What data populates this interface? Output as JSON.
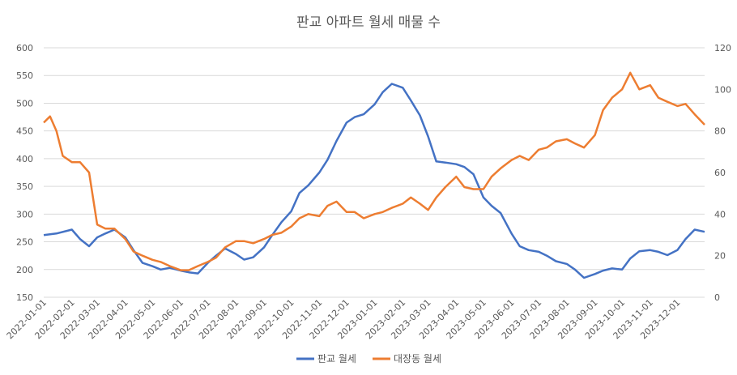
{
  "chart_data": {
    "type": "line",
    "title": "판교 아파트 월세 매물 수",
    "x_tick_labels": [
      "2022-01-01",
      "2022-02-01",
      "2022-03-01",
      "2022-04-01",
      "2022-05-01",
      "2022-06-01",
      "2022-07-01",
      "2022-08-01",
      "2022-09-01",
      "2022-10-01",
      "2022-11-01",
      "2022-12-01",
      "2023-01-01",
      "2023-02-01",
      "2023-03-01",
      "2023-04-01",
      "2023-05-01",
      "2023-06-01",
      "2023-07-01",
      "2023-08-01",
      "2023-09-01",
      "2023-10-01",
      "2023-11-01",
      "2023-12-01"
    ],
    "y_left": {
      "min": 150,
      "max": 600,
      "ticks": [
        "150",
        "200",
        "250",
        "300",
        "350",
        "400",
        "450",
        "500",
        "550",
        "600"
      ]
    },
    "y_right": {
      "min": 0,
      "max": 120,
      "ticks": [
        "0",
        "20",
        "40",
        "60",
        "80",
        "100",
        "120"
      ]
    },
    "grid": "horizontal",
    "legend_position": "bottom",
    "series": [
      {
        "name": "판교 월세",
        "axis": "left",
        "color": "#4472C4",
        "points": [
          [
            "2022-01-01",
            262
          ],
          [
            "2022-01-15",
            265
          ],
          [
            "2022-02-01",
            272
          ],
          [
            "2022-02-10",
            255
          ],
          [
            "2022-02-20",
            242
          ],
          [
            "2022-03-01",
            258
          ],
          [
            "2022-03-10",
            265
          ],
          [
            "2022-03-20",
            272
          ],
          [
            "2022-04-01",
            258
          ],
          [
            "2022-04-10",
            235
          ],
          [
            "2022-04-20",
            212
          ],
          [
            "2022-05-01",
            206
          ],
          [
            "2022-05-10",
            200
          ],
          [
            "2022-05-20",
            203
          ],
          [
            "2022-06-01",
            198
          ],
          [
            "2022-06-10",
            195
          ],
          [
            "2022-06-20",
            193
          ],
          [
            "2022-07-01",
            212
          ],
          [
            "2022-07-10",
            225
          ],
          [
            "2022-07-20",
            238
          ],
          [
            "2022-08-01",
            228
          ],
          [
            "2022-08-10",
            218
          ],
          [
            "2022-08-20",
            222
          ],
          [
            "2022-09-01",
            240
          ],
          [
            "2022-09-10",
            262
          ],
          [
            "2022-09-20",
            285
          ],
          [
            "2022-10-01",
            305
          ],
          [
            "2022-10-10",
            338
          ],
          [
            "2022-10-20",
            352
          ],
          [
            "2022-11-01",
            375
          ],
          [
            "2022-11-10",
            398
          ],
          [
            "2022-11-20",
            432
          ],
          [
            "2022-12-01",
            465
          ],
          [
            "2022-12-10",
            475
          ],
          [
            "2022-12-20",
            480
          ],
          [
            "2023-01-01",
            498
          ],
          [
            "2023-01-10",
            520
          ],
          [
            "2023-01-20",
            535
          ],
          [
            "2023-02-01",
            528
          ],
          [
            "2023-02-10",
            505
          ],
          [
            "2023-02-20",
            478
          ],
          [
            "2023-03-01",
            440
          ],
          [
            "2023-03-10",
            395
          ],
          [
            "2023-03-20",
            393
          ],
          [
            "2023-04-01",
            390
          ],
          [
            "2023-04-10",
            385
          ],
          [
            "2023-04-20",
            372
          ],
          [
            "2023-05-01",
            330
          ],
          [
            "2023-05-10",
            315
          ],
          [
            "2023-05-20",
            302
          ],
          [
            "2023-06-01",
            265
          ],
          [
            "2023-06-10",
            242
          ],
          [
            "2023-06-20",
            235
          ],
          [
            "2023-07-01",
            232
          ],
          [
            "2023-07-10",
            225
          ],
          [
            "2023-07-20",
            215
          ],
          [
            "2023-08-01",
            210
          ],
          [
            "2023-08-10",
            200
          ],
          [
            "2023-08-20",
            185
          ],
          [
            "2023-09-01",
            192
          ],
          [
            "2023-09-10",
            198
          ],
          [
            "2023-09-20",
            202
          ],
          [
            "2023-10-01",
            200
          ],
          [
            "2023-10-10",
            220
          ],
          [
            "2023-10-20",
            233
          ],
          [
            "2023-11-01",
            235
          ],
          [
            "2023-11-10",
            232
          ],
          [
            "2023-11-20",
            226
          ],
          [
            "2023-12-01",
            235
          ],
          [
            "2023-12-10",
            255
          ],
          [
            "2023-12-20",
            272
          ],
          [
            "2023-12-31",
            268
          ]
        ]
      },
      {
        "name": "대장동 월세",
        "axis": "right",
        "color": "#ED7D31",
        "points": [
          [
            "2022-01-01",
            84
          ],
          [
            "2022-01-08",
            87
          ],
          [
            "2022-01-15",
            80
          ],
          [
            "2022-01-22",
            68
          ],
          [
            "2022-02-01",
            65
          ],
          [
            "2022-02-10",
            65
          ],
          [
            "2022-02-20",
            60
          ],
          [
            "2022-03-01",
            35
          ],
          [
            "2022-03-10",
            33
          ],
          [
            "2022-03-20",
            33
          ],
          [
            "2022-04-01",
            28
          ],
          [
            "2022-04-10",
            22
          ],
          [
            "2022-04-20",
            20
          ],
          [
            "2022-05-01",
            18
          ],
          [
            "2022-05-10",
            17
          ],
          [
            "2022-05-20",
            15
          ],
          [
            "2022-06-01",
            13
          ],
          [
            "2022-06-10",
            13
          ],
          [
            "2022-06-20",
            15
          ],
          [
            "2022-07-01",
            17
          ],
          [
            "2022-07-10",
            19
          ],
          [
            "2022-07-20",
            24
          ],
          [
            "2022-08-01",
            27
          ],
          [
            "2022-08-10",
            27
          ],
          [
            "2022-08-20",
            26
          ],
          [
            "2022-09-01",
            28
          ],
          [
            "2022-09-10",
            30
          ],
          [
            "2022-09-20",
            31
          ],
          [
            "2022-10-01",
            34
          ],
          [
            "2022-10-10",
            38
          ],
          [
            "2022-10-20",
            40
          ],
          [
            "2022-11-01",
            39
          ],
          [
            "2022-11-10",
            44
          ],
          [
            "2022-11-20",
            46
          ],
          [
            "2022-12-01",
            41
          ],
          [
            "2022-12-10",
            41
          ],
          [
            "2022-12-20",
            38
          ],
          [
            "2023-01-01",
            40
          ],
          [
            "2023-01-10",
            41
          ],
          [
            "2023-01-20",
            43
          ],
          [
            "2023-02-01",
            45
          ],
          [
            "2023-02-10",
            48
          ],
          [
            "2023-02-20",
            45
          ],
          [
            "2023-03-01",
            42
          ],
          [
            "2023-03-10",
            48
          ],
          [
            "2023-03-20",
            53
          ],
          [
            "2023-04-01",
            58
          ],
          [
            "2023-04-10",
            53
          ],
          [
            "2023-04-20",
            52
          ],
          [
            "2023-05-01",
            52
          ],
          [
            "2023-05-10",
            58
          ],
          [
            "2023-05-20",
            62
          ],
          [
            "2023-06-01",
            66
          ],
          [
            "2023-06-10",
            68
          ],
          [
            "2023-06-20",
            66
          ],
          [
            "2023-07-01",
            71
          ],
          [
            "2023-07-10",
            72
          ],
          [
            "2023-07-20",
            75
          ],
          [
            "2023-08-01",
            76
          ],
          [
            "2023-08-10",
            74
          ],
          [
            "2023-08-20",
            72
          ],
          [
            "2023-09-01",
            78
          ],
          [
            "2023-09-10",
            90
          ],
          [
            "2023-09-20",
            96
          ],
          [
            "2023-10-01",
            100
          ],
          [
            "2023-10-10",
            108
          ],
          [
            "2023-10-20",
            100
          ],
          [
            "2023-11-01",
            102
          ],
          [
            "2023-11-10",
            96
          ],
          [
            "2023-11-20",
            94
          ],
          [
            "2023-12-01",
            92
          ],
          [
            "2023-12-10",
            93
          ],
          [
            "2023-12-20",
            88
          ],
          [
            "2023-12-31",
            83
          ]
        ]
      }
    ]
  }
}
